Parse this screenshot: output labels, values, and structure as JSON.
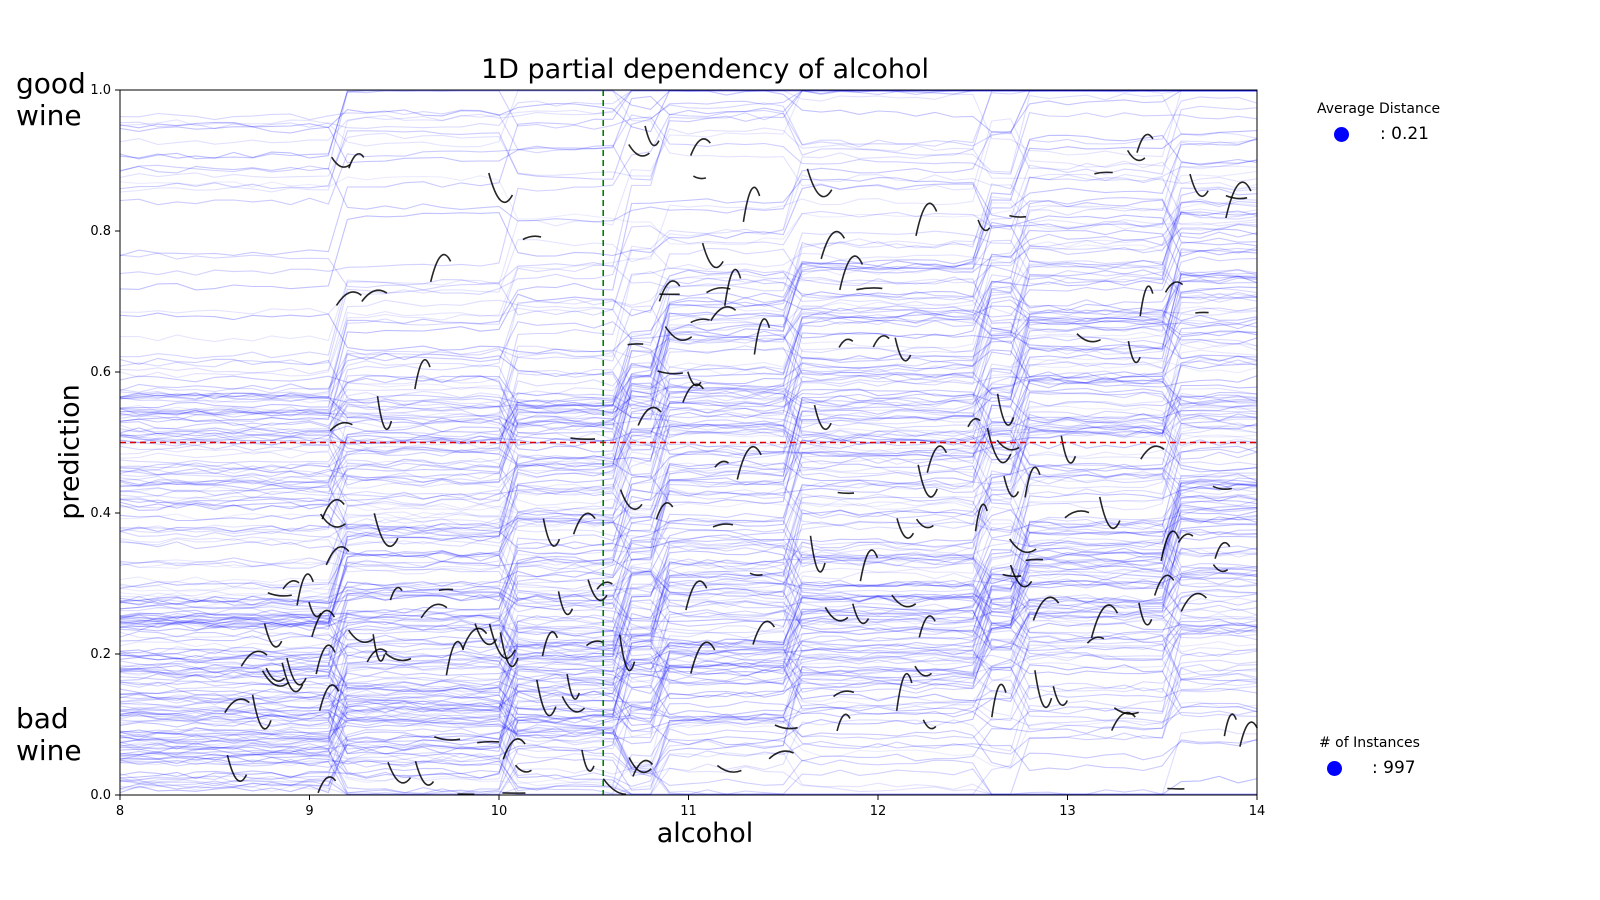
{
  "chart_data": {
    "type": "line",
    "title": "1D partial dependency of alcohol",
    "xlabel": "alcohol",
    "ylabel": "prediction",
    "xlim": [
      8,
      14
    ],
    "ylim": [
      0.0,
      1.0
    ],
    "xticks": [
      "8",
      "9",
      "10",
      "11",
      "12",
      "13",
      "14"
    ],
    "yticks": [
      "0.0",
      "0.2",
      "0.4",
      "0.6",
      "0.8",
      "1.0"
    ],
    "grid": false,
    "reference_lines": [
      {
        "orientation": "horizontal",
        "value": 0.5,
        "color": "#e00000",
        "style": "dashed"
      },
      {
        "orientation": "vertical",
        "value": 10.55,
        "color": "#007a00",
        "style": "dashed"
      }
    ],
    "ice_line_color": "#0000ff",
    "local_segment_color": "#000000",
    "corner_labels": {
      "top": [
        "good",
        "wine"
      ],
      "bottom": [
        "bad",
        "wine"
      ]
    },
    "legend": [
      {
        "title": "Average Distance",
        "value": ": 0.21",
        "color": "#0000ff"
      },
      {
        "title": "# of Instances",
        "value": ": 997",
        "color": "#0000ff"
      }
    ]
  }
}
